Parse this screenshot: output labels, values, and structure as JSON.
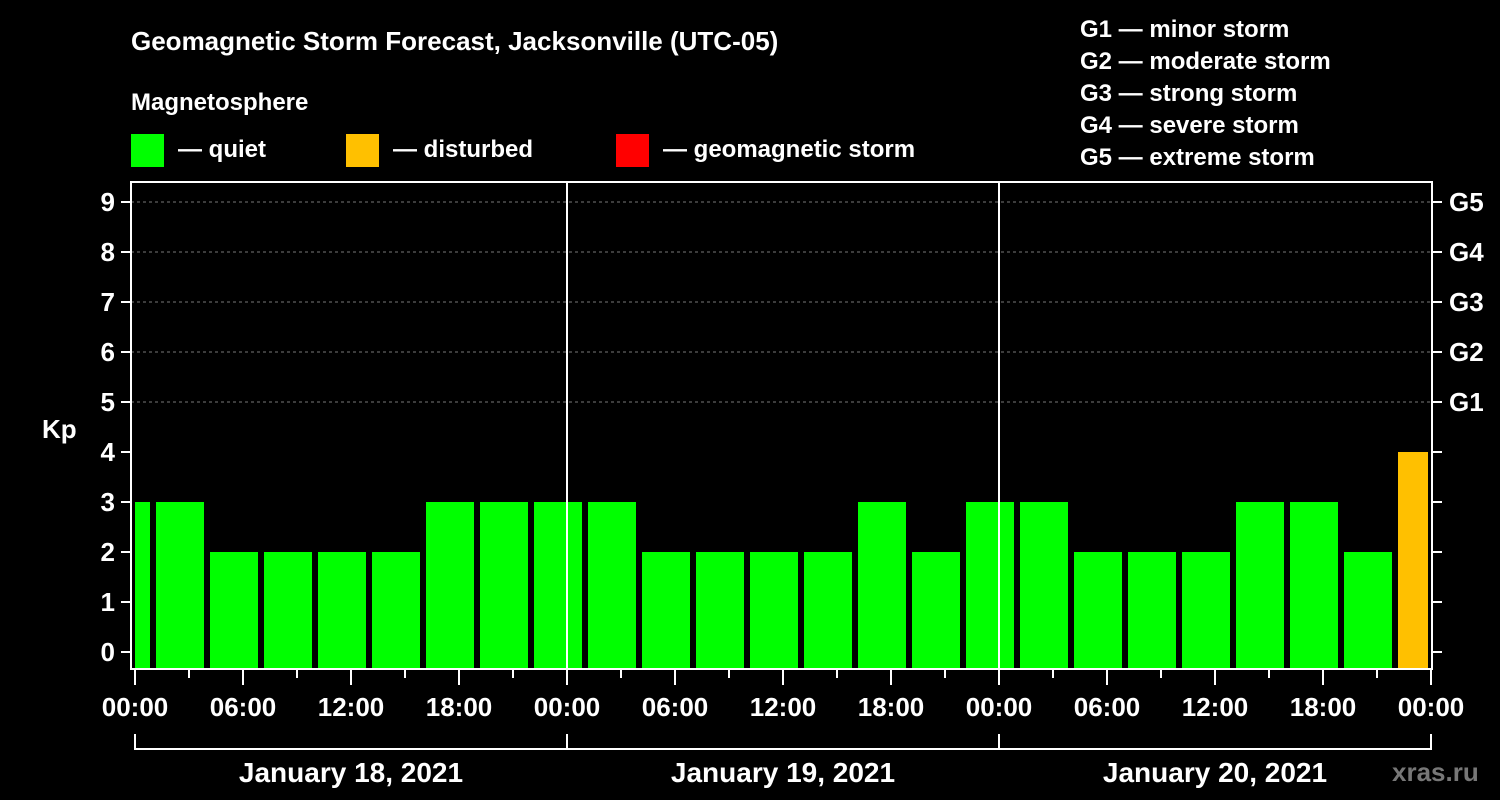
{
  "chart_data": {
    "type": "bar",
    "title": "Geomagnetic Storm Forecast, Jacksonville (UTC-05)",
    "legend_title": "Magnetosphere",
    "legend": [
      {
        "label": "— quiet",
        "color": "#00ff00"
      },
      {
        "label": "— disturbed",
        "color": "#ffc000"
      },
      {
        "label": "— geomagnetic storm",
        "color": "#ff0000"
      }
    ],
    "storm_scale": [
      "G1 — minor storm",
      "G2 — moderate storm",
      "G3 — strong storm",
      "G4 — severe storm",
      "G5 — extreme storm"
    ],
    "ylabel": "Kp",
    "ylim": [
      0,
      9
    ],
    "yticks": [
      "0",
      "1",
      "2",
      "3",
      "4",
      "5",
      "6",
      "7",
      "8",
      "9"
    ],
    "right_ticks": [
      {
        "kp": 5,
        "label": "G1"
      },
      {
        "kp": 6,
        "label": "G2"
      },
      {
        "kp": 7,
        "label": "G3"
      },
      {
        "kp": 8,
        "label": "G4"
      },
      {
        "kp": 9,
        "label": "G5"
      }
    ],
    "xticks": [
      "00:00",
      "06:00",
      "12:00",
      "18:00",
      "00:00",
      "06:00",
      "12:00",
      "18:00",
      "00:00",
      "06:00",
      "12:00",
      "18:00",
      "00:00"
    ],
    "days": [
      "January 18, 2021",
      "January 19, 2021",
      "January 20, 2021"
    ],
    "interval_hours": 3,
    "first_bar_start_hour": -2,
    "values": [
      3,
      3,
      2,
      2,
      2,
      2,
      3,
      3,
      3,
      3,
      2,
      2,
      2,
      2,
      3,
      2,
      3,
      3,
      2,
      2,
      2,
      3,
      3,
      2,
      4
    ],
    "colors": {
      "quiet": "#00ff00",
      "disturbed": "#ffc000",
      "storm": "#ff0000"
    },
    "watermark": "xras.ru"
  }
}
